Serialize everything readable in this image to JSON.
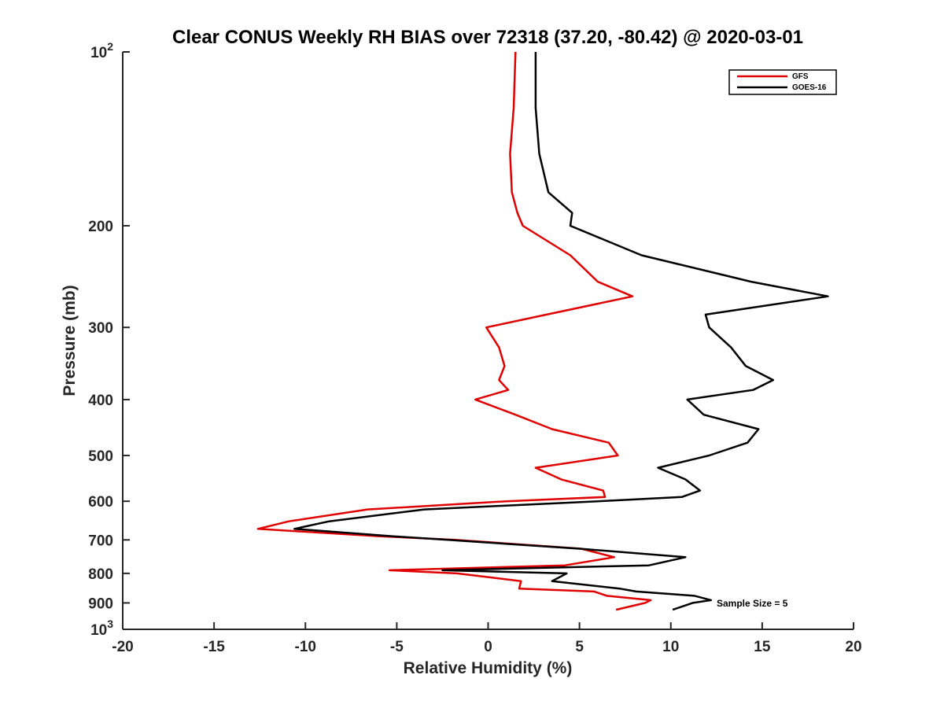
{
  "chart_data": {
    "type": "line",
    "title": "Clear CONUS Weekly RH BIAS over 72318 (37.20, -80.42) @ 2020-03-01",
    "xlabel": "Relative Humidity (%)",
    "ylabel": "Pressure (mb)",
    "xlim": [
      -20,
      20
    ],
    "ylim": [
      100,
      1000
    ],
    "yscale": "log",
    "y_reversed": true,
    "grid": false,
    "legend_position": "top-right",
    "x_ticks": [
      "-20",
      "-15",
      "-10",
      "-5",
      "0",
      "5",
      "10",
      "15",
      "20"
    ],
    "y_ticks": [
      {
        "value": 100,
        "base": "10",
        "exp": "2"
      },
      {
        "value": 200,
        "label": "200"
      },
      {
        "value": 300,
        "label": "300"
      },
      {
        "value": 400,
        "label": "400"
      },
      {
        "value": 500,
        "label": "500"
      },
      {
        "value": 600,
        "label": "600"
      },
      {
        "value": 700,
        "label": "700"
      },
      {
        "value": 800,
        "label": "800"
      },
      {
        "value": 900,
        "label": "900"
      },
      {
        "value": 1000,
        "base": "10",
        "exp": "3"
      }
    ],
    "annotation": "Sample Size = 5",
    "series": [
      {
        "name": "GFS",
        "color": "#e00000",
        "points": [
          [
            1.5,
            100
          ],
          [
            1.4,
            125
          ],
          [
            1.2,
            150
          ],
          [
            1.3,
            175
          ],
          [
            1.6,
            190
          ],
          [
            1.9,
            200
          ],
          [
            4.5,
            225
          ],
          [
            6.0,
            250
          ],
          [
            7.9,
            265
          ],
          [
            3.2,
            285
          ],
          [
            -0.1,
            300
          ],
          [
            0.6,
            325
          ],
          [
            0.9,
            350
          ],
          [
            0.6,
            370
          ],
          [
            1.1,
            385
          ],
          [
            -0.7,
            400
          ],
          [
            1.5,
            425
          ],
          [
            3.5,
            450
          ],
          [
            6.6,
            475
          ],
          [
            7.1,
            500
          ],
          [
            2.6,
            525
          ],
          [
            4.0,
            550
          ],
          [
            6.3,
            575
          ],
          [
            6.4,
            590
          ],
          [
            1.0,
            600
          ],
          [
            -6.6,
            620
          ],
          [
            -10.9,
            650
          ],
          [
            -12.6,
            670
          ],
          [
            -5.9,
            690
          ],
          [
            -1.8,
            700
          ],
          [
            5.1,
            725
          ],
          [
            6.9,
            750
          ],
          [
            4.2,
            775
          ],
          [
            -5.4,
            790
          ],
          [
            -1.7,
            800
          ],
          [
            1.8,
            825
          ],
          [
            1.7,
            850
          ],
          [
            5.8,
            860
          ],
          [
            6.5,
            875
          ],
          [
            8.9,
            890
          ],
          [
            8.6,
            900
          ],
          [
            7.0,
            925
          ]
        ]
      },
      {
        "name": "GOES-16",
        "color": "#000000",
        "points": [
          [
            2.6,
            100
          ],
          [
            2.6,
            125
          ],
          [
            2.8,
            150
          ],
          [
            3.3,
            175
          ],
          [
            4.6,
            190
          ],
          [
            4.5,
            200
          ],
          [
            8.4,
            225
          ],
          [
            14.4,
            250
          ],
          [
            18.6,
            265
          ],
          [
            11.9,
            285
          ],
          [
            12.1,
            300
          ],
          [
            13.3,
            325
          ],
          [
            14.1,
            350
          ],
          [
            15.6,
            370
          ],
          [
            14.5,
            385
          ],
          [
            10.9,
            400
          ],
          [
            11.8,
            425
          ],
          [
            14.8,
            450
          ],
          [
            14.2,
            475
          ],
          [
            12.1,
            500
          ],
          [
            9.3,
            525
          ],
          [
            10.8,
            550
          ],
          [
            11.6,
            575
          ],
          [
            10.6,
            590
          ],
          [
            6.0,
            600
          ],
          [
            -3.5,
            620
          ],
          [
            -8.7,
            650
          ],
          [
            -10.6,
            670
          ],
          [
            -5.2,
            690
          ],
          [
            -2.2,
            700
          ],
          [
            5.0,
            725
          ],
          [
            10.8,
            750
          ],
          [
            8.8,
            775
          ],
          [
            -2.5,
            790
          ],
          [
            4.3,
            800
          ],
          [
            3.5,
            825
          ],
          [
            7.2,
            850
          ],
          [
            8.1,
            860
          ],
          [
            11.3,
            875
          ],
          [
            12.2,
            890
          ],
          [
            11.2,
            900
          ],
          [
            10.1,
            925
          ]
        ]
      }
    ]
  }
}
